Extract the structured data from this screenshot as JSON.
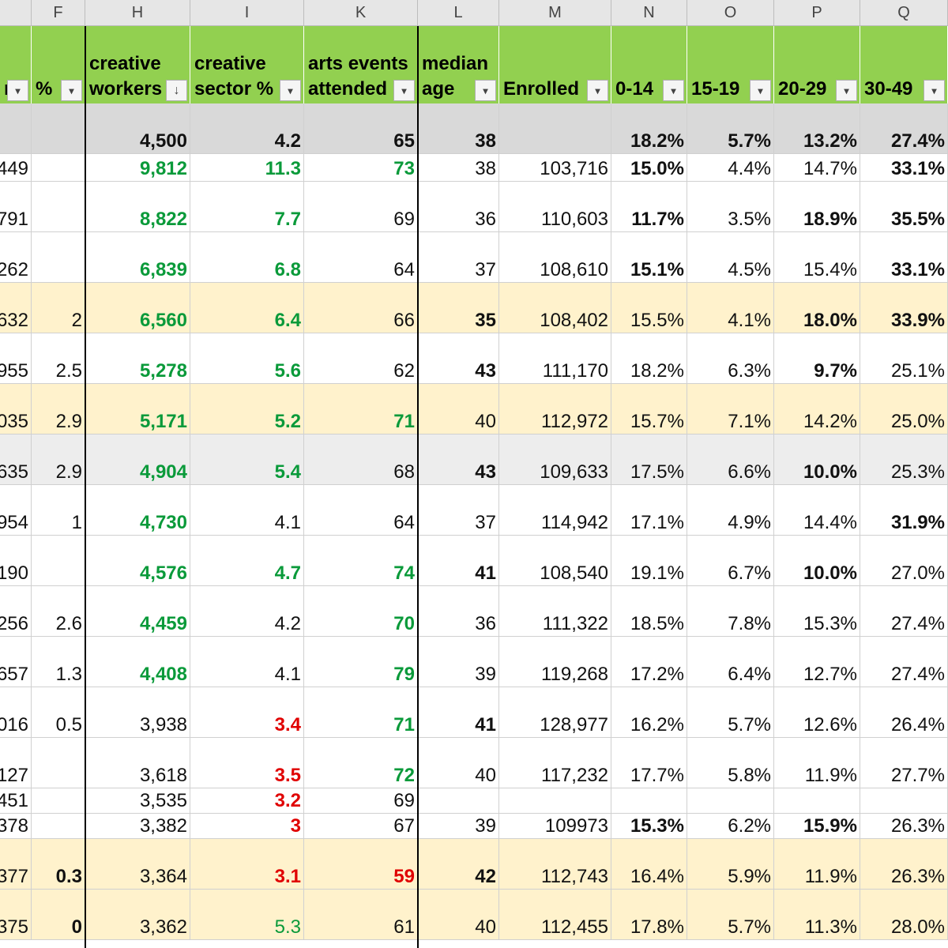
{
  "sheet": {
    "col_letters": [
      "",
      "F",
      "H",
      "I",
      "K",
      "L",
      "M",
      "N",
      "O",
      "P",
      "Q"
    ],
    "headers": [
      {
        "lines": [
          "",
          "n"
        ],
        "filter": "▾",
        "sort": ""
      },
      {
        "lines": [
          "",
          "%"
        ],
        "filter": "▾",
        "sort": ""
      },
      {
        "lines": [
          "creative",
          "workers"
        ],
        "filter": "▾",
        "sort": "↓"
      },
      {
        "lines": [
          "creative",
          "sector %"
        ],
        "filter": "▾",
        "sort": ""
      },
      {
        "lines": [
          "arts events",
          "attended"
        ],
        "filter": "▾",
        "sort": ""
      },
      {
        "lines": [
          "median",
          "age"
        ],
        "filter": "▾",
        "sort": ""
      },
      {
        "lines": [
          "",
          "Enrolled"
        ],
        "filter": "▾",
        "sort": ""
      },
      {
        "lines": [
          "",
          "0-14"
        ],
        "filter": "▾",
        "sort": ""
      },
      {
        "lines": [
          "",
          "15-19"
        ],
        "filter": "▾",
        "sort": ""
      },
      {
        "lines": [
          "",
          "20-29"
        ],
        "filter": "▾",
        "sort": ""
      },
      {
        "lines": [
          "",
          "30-49"
        ],
        "filter": "▾",
        "sort": ""
      }
    ],
    "rows": [
      {
        "bg": "#d9d9d9",
        "cells": [
          "",
          "",
          "4,500",
          "4.2",
          "65",
          "38",
          "",
          "18.2%",
          "5.7%",
          "13.2%",
          "27.4%"
        ],
        "styles": [
          "",
          "",
          "b",
          "b",
          "b",
          "b",
          "",
          "b",
          "b",
          "b",
          "b"
        ]
      },
      {
        "bg": "#ffffff",
        "cells": [
          "449",
          "",
          "9,812",
          "11.3",
          "73",
          "38",
          "103,716",
          "15.0%",
          "4.4%",
          "14.7%",
          "33.1%"
        ],
        "styles": [
          "",
          "",
          "g",
          "g",
          "g",
          "",
          "",
          "b",
          "",
          "",
          "b"
        ]
      },
      {
        "bg": "#ffffff",
        "cells": [
          "791",
          "",
          "8,822",
          "7.7",
          "69",
          "36",
          "110,603",
          "11.7%",
          "3.5%",
          "18.9%",
          "35.5%"
        ],
        "styles": [
          "",
          "",
          "g",
          "g",
          "",
          "",
          "",
          "b",
          "",
          "b",
          "b"
        ]
      },
      {
        "bg": "#ffffff",
        "cells": [
          "262",
          "",
          "6,839",
          "6.8",
          "64",
          "37",
          "108,610",
          "15.1%",
          "4.5%",
          "15.4%",
          "33.1%"
        ],
        "styles": [
          "",
          "",
          "g",
          "g",
          "",
          "",
          "",
          "b",
          "",
          "",
          "b"
        ]
      },
      {
        "bg": "#fff2cc",
        "cells": [
          "632",
          "2",
          "6,560",
          "6.4",
          "66",
          "35",
          "108,402",
          "15.5%",
          "4.1%",
          "18.0%",
          "33.9%"
        ],
        "styles": [
          "",
          "",
          "g",
          "g",
          "",
          "b",
          "",
          "",
          "",
          "b",
          "b"
        ]
      },
      {
        "bg": "#ffffff",
        "cells": [
          "955",
          "2.5",
          "5,278",
          "5.6",
          "62",
          "43",
          "111,170",
          "18.2%",
          "6.3%",
          "9.7%",
          "25.1%"
        ],
        "styles": [
          "",
          "",
          "g",
          "g",
          "",
          "b",
          "",
          "",
          "",
          "b",
          ""
        ]
      },
      {
        "bg": "#fff2cc",
        "cells": [
          "035",
          "2.9",
          "5,171",
          "5.2",
          "71",
          "40",
          "112,972",
          "15.7%",
          "7.1%",
          "14.2%",
          "25.0%"
        ],
        "styles": [
          "",
          "",
          "g",
          "g",
          "g",
          "",
          "",
          "",
          "",
          "",
          ""
        ]
      },
      {
        "bg": "#ededed",
        "cells": [
          "635",
          "2.9",
          "4,904",
          "5.4",
          "68",
          "43",
          "109,633",
          "17.5%",
          "6.6%",
          "10.0%",
          "25.3%"
        ],
        "styles": [
          "",
          "",
          "g",
          "g",
          "",
          "b",
          "",
          "",
          "",
          "b",
          ""
        ]
      },
      {
        "bg": "#ffffff",
        "cells": [
          "954",
          "1",
          "4,730",
          "4.1",
          "64",
          "37",
          "114,942",
          "17.1%",
          "4.9%",
          "14.4%",
          "31.9%"
        ],
        "styles": [
          "",
          "",
          "g",
          "",
          "",
          "",
          "",
          "",
          "",
          "",
          "b"
        ]
      },
      {
        "bg": "#ffffff",
        "cells": [
          "190",
          "",
          "4,576",
          "4.7",
          "74",
          "41",
          "108,540",
          "19.1%",
          "6.7%",
          "10.0%",
          "27.0%"
        ],
        "styles": [
          "",
          "",
          "g",
          "g",
          "g",
          "b",
          "",
          "",
          "",
          "b",
          ""
        ]
      },
      {
        "bg": "#ffffff",
        "cells": [
          "256",
          "2.6",
          "4,459",
          "4.2",
          "70",
          "36",
          "111,322",
          "18.5%",
          "7.8%",
          "15.3%",
          "27.4%"
        ],
        "styles": [
          "",
          "",
          "g",
          "",
          "g",
          "",
          "",
          "",
          "",
          "",
          ""
        ]
      },
      {
        "bg": "#ffffff",
        "cells": [
          "657",
          "1.3",
          "4,408",
          "4.1",
          "79",
          "39",
          "119,268",
          "17.2%",
          "6.4%",
          "12.7%",
          "27.4%"
        ],
        "styles": [
          "",
          "",
          "g",
          "",
          "g",
          "",
          "",
          "",
          "",
          "",
          ""
        ]
      },
      {
        "bg": "#ffffff",
        "cells": [
          "016",
          "0.5",
          "3,938",
          "3.4",
          "71",
          "41",
          "128,977",
          "16.2%",
          "5.7%",
          "12.6%",
          "26.4%"
        ],
        "styles": [
          "",
          "",
          "",
          "r",
          "g",
          "b",
          "",
          "",
          "",
          "",
          ""
        ]
      },
      {
        "bg": "#ffffff",
        "cells": [
          "127",
          "",
          "3,618",
          "3.5",
          "72",
          "40",
          "117,232",
          "17.7%",
          "5.8%",
          "11.9%",
          "27.7%"
        ],
        "styles": [
          "",
          "",
          "",
          "r",
          "g",
          "",
          "",
          "",
          "",
          "",
          ""
        ]
      },
      {
        "bg": "#ffffff",
        "cells": [
          "451",
          "",
          "3,535",
          "3.2",
          "69",
          "",
          "",
          "",
          "",
          "",
          ""
        ],
        "styles": [
          "",
          "",
          "",
          "r",
          "",
          "",
          "",
          "",
          "",
          "",
          ""
        ]
      },
      {
        "bg": "#ffffff",
        "cells": [
          "378",
          "",
          "3,382",
          "3",
          "67",
          "39",
          "109973",
          "15.3%",
          "6.2%",
          "15.9%",
          "26.3%"
        ],
        "styles": [
          "",
          "",
          "",
          "r",
          "",
          "",
          "",
          "b",
          "",
          "b",
          ""
        ]
      },
      {
        "bg": "#fff2cc",
        "cells": [
          "377",
          "0.3",
          "3,364",
          "3.1",
          "59",
          "42",
          "112,743",
          "16.4%",
          "5.9%",
          "11.9%",
          "26.3%"
        ],
        "styles": [
          "",
          "b",
          "",
          "r",
          "r",
          "b",
          "",
          "",
          "",
          "",
          ""
        ]
      },
      {
        "bg": "#fff2cc",
        "cells": [
          "375",
          "0",
          "3,362",
          "5.3",
          "61",
          "40",
          "112,455",
          "17.8%",
          "5.7%",
          "11.3%",
          "28.0%"
        ],
        "styles": [
          "",
          "b",
          "",
          "gr",
          "",
          "",
          "",
          "",
          "",
          "",
          ""
        ]
      }
    ]
  }
}
